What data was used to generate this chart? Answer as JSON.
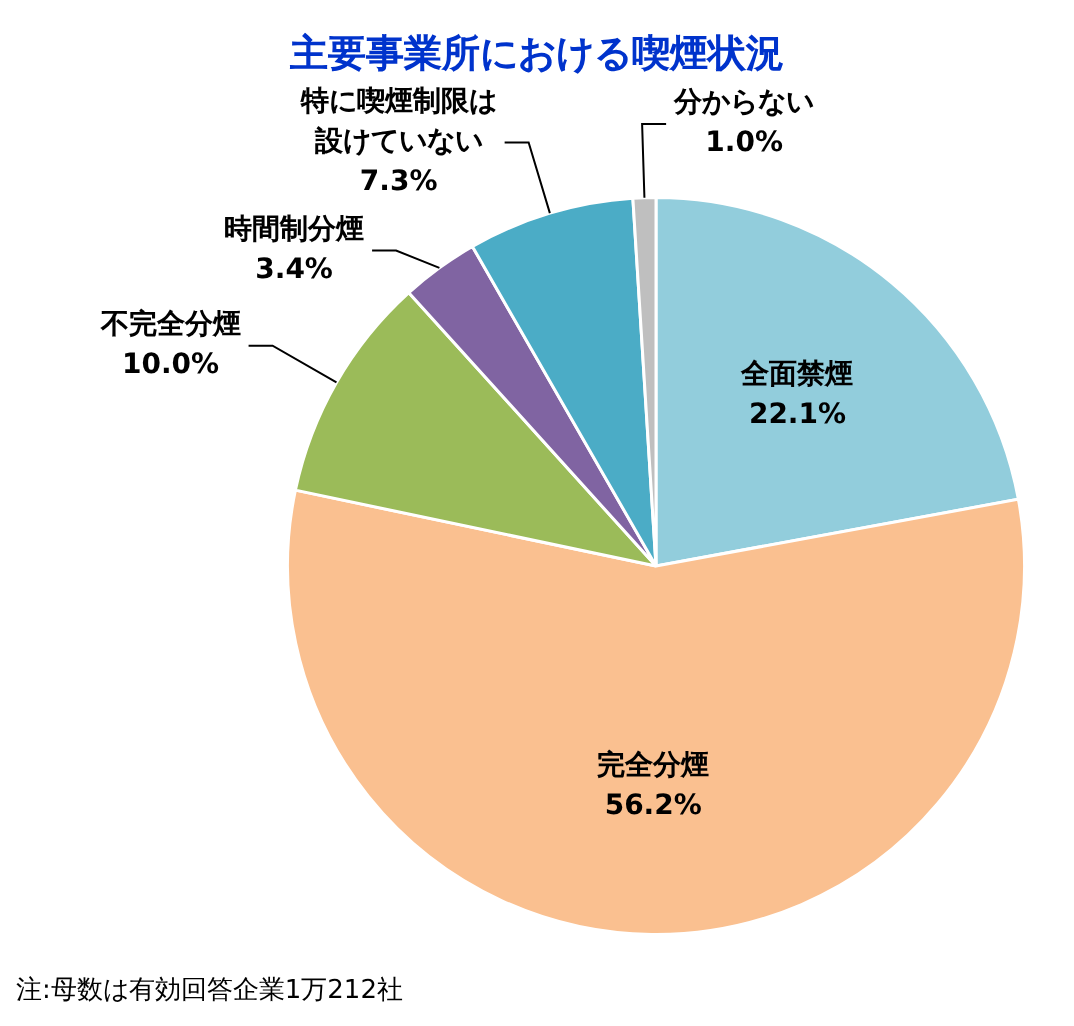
{
  "chart_data": {
    "type": "pie",
    "title": "主要事業所における喫煙状況",
    "categories": [
      "全面禁煙",
      "完全分煙",
      "不完全分煙",
      "時間制分煙",
      "特に喫煙制限は設けていない",
      "分からない"
    ],
    "values": [
      22.1,
      56.2,
      10.0,
      3.4,
      7.3,
      1.0
    ],
    "value_labels": [
      "22.1%",
      "56.2%",
      "10.0%",
      "3.4%",
      "7.3%",
      "1.0%"
    ],
    "colors": [
      "#92cddc",
      "#fac090",
      "#9bbb59",
      "#8064a2",
      "#4bacc6",
      "#bfbfbf"
    ],
    "annotations": [
      "注:母数は有効回答企業1万212社"
    ]
  }
}
